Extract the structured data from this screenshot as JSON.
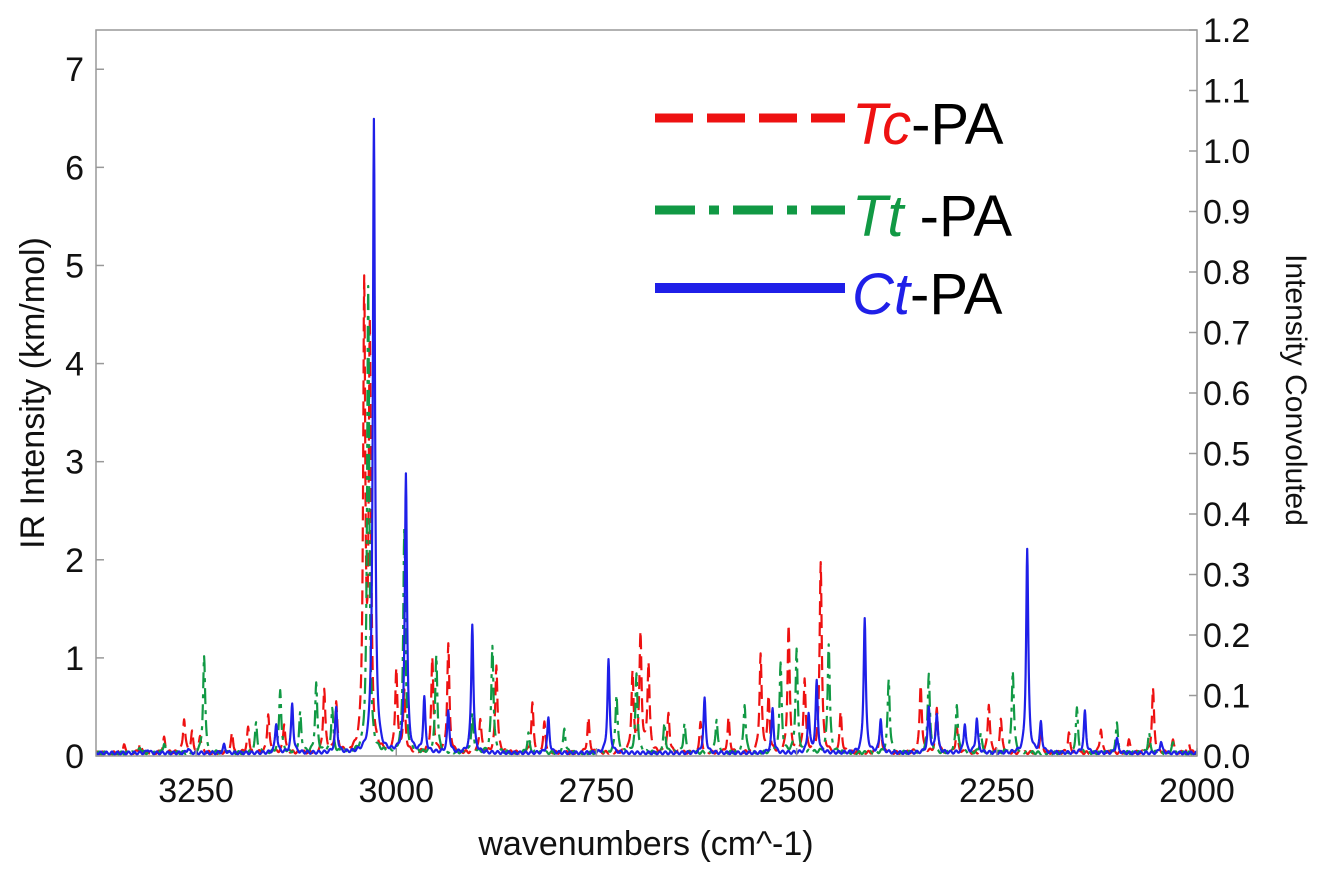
{
  "chart_data": {
    "type": "line",
    "title": "",
    "xlabel": "wavenumbers (cm^-1)",
    "ylabel": "IR Intensity (km/mol)",
    "ylabel_right": "Intensity Convoluted",
    "xlim": [
      3375,
      2000
    ],
    "xaxis_reversed": true,
    "ylim": [
      0,
      7.4
    ],
    "ylim_right": [
      0,
      1.2
    ],
    "x_ticks": [
      3250,
      3000,
      2750,
      2500,
      2250,
      2000
    ],
    "y_ticks": [
      0,
      1,
      2,
      3,
      4,
      5,
      6,
      7
    ],
    "y_right_ticks": [
      "0.0",
      "0.1",
      "0.2",
      "0.3",
      "0.4",
      "0.5",
      "0.6",
      "0.7",
      "0.8",
      "0.9",
      "1.0",
      "1.1",
      "1.2"
    ],
    "grid": false,
    "legend_position": "top-right",
    "legend": [
      {
        "italic": "Tc",
        "rest": "-PA",
        "color": "#ee1111",
        "dash": "dash"
      },
      {
        "italic": "Tt",
        "rest": " -PA",
        "color": "#119944",
        "dash": "dashdot"
      },
      {
        "italic": "Ct",
        "rest": "-PA",
        "color": "#1f1fe8",
        "dash": "solid"
      }
    ],
    "series": [
      {
        "name": "Tc-PA",
        "color": "#ee1111",
        "style": "dash",
        "peaks": [
          [
            3340,
            0.08
          ],
          [
            3320,
            0.1
          ],
          [
            3290,
            0.15
          ],
          [
            3265,
            0.35
          ],
          [
            3255,
            0.2
          ],
          [
            3245,
            0.18
          ],
          [
            3205,
            0.2
          ],
          [
            3185,
            0.25
          ],
          [
            3160,
            0.4
          ],
          [
            3140,
            0.3
          ],
          [
            3090,
            0.65
          ],
          [
            3075,
            0.5
          ],
          [
            3040,
            4.65
          ],
          [
            3033,
            4.2
          ],
          [
            3000,
            0.85
          ],
          [
            2990,
            0.6
          ],
          [
            2955,
            0.95
          ],
          [
            2935,
            1.1
          ],
          [
            2895,
            0.35
          ],
          [
            2875,
            0.9
          ],
          [
            2830,
            0.5
          ],
          [
            2815,
            0.3
          ],
          [
            2760,
            0.35
          ],
          [
            2705,
            0.8
          ],
          [
            2695,
            1.2
          ],
          [
            2685,
            0.9
          ],
          [
            2660,
            0.4
          ],
          [
            2620,
            0.3
          ],
          [
            2585,
            0.35
          ],
          [
            2545,
            1.0
          ],
          [
            2535,
            0.55
          ],
          [
            2510,
            1.3
          ],
          [
            2490,
            0.75
          ],
          [
            2470,
            1.95
          ],
          [
            2445,
            0.4
          ],
          [
            2395,
            0.3
          ],
          [
            2345,
            0.7
          ],
          [
            2325,
            0.45
          ],
          [
            2300,
            0.25
          ],
          [
            2260,
            0.5
          ],
          [
            2245,
            0.35
          ],
          [
            2195,
            0.25
          ],
          [
            2160,
            0.2
          ],
          [
            2120,
            0.25
          ],
          [
            2085,
            0.15
          ],
          [
            2055,
            0.65
          ],
          [
            2030,
            0.15
          ],
          [
            2010,
            0.1
          ]
        ]
      },
      {
        "name": "Tt-PA",
        "color": "#119944",
        "style": "dashdot",
        "peaks": [
          [
            3320,
            0.06
          ],
          [
            3290,
            0.1
          ],
          [
            3240,
            0.98
          ],
          [
            3175,
            0.3
          ],
          [
            3145,
            0.65
          ],
          [
            3120,
            0.4
          ],
          [
            3100,
            0.7
          ],
          [
            3080,
            0.45
          ],
          [
            3035,
            4.75
          ],
          [
            2990,
            2.3
          ],
          [
            2950,
            1.0
          ],
          [
            2905,
            0.4
          ],
          [
            2880,
            1.1
          ],
          [
            2835,
            0.2
          ],
          [
            2790,
            0.25
          ],
          [
            2725,
            0.6
          ],
          [
            2700,
            0.8
          ],
          [
            2665,
            0.3
          ],
          [
            2640,
            0.3
          ],
          [
            2600,
            0.35
          ],
          [
            2565,
            0.5
          ],
          [
            2520,
            0.9
          ],
          [
            2500,
            1.05
          ],
          [
            2460,
            1.12
          ],
          [
            2385,
            0.75
          ],
          [
            2335,
            0.82
          ],
          [
            2300,
            0.5
          ],
          [
            2270,
            0.2
          ],
          [
            2230,
            0.85
          ],
          [
            2150,
            0.45
          ],
          [
            2100,
            0.3
          ],
          [
            2060,
            0.2
          ],
          [
            2030,
            0.1
          ]
        ]
      },
      {
        "name": "Ct-PA",
        "color": "#1f1fe8",
        "style": "solid",
        "peaks": [
          [
            3310,
            0.04
          ],
          [
            3260,
            0.05
          ],
          [
            3215,
            0.08
          ],
          [
            3150,
            0.3
          ],
          [
            3130,
            0.5
          ],
          [
            3075,
            0.45
          ],
          [
            3028,
            6.45
          ],
          [
            2988,
            2.85
          ],
          [
            2965,
            0.55
          ],
          [
            2935,
            0.42
          ],
          [
            2905,
            1.32
          ],
          [
            2810,
            0.35
          ],
          [
            2735,
            0.95
          ],
          [
            2615,
            0.55
          ],
          [
            2530,
            0.45
          ],
          [
            2485,
            0.4
          ],
          [
            2475,
            0.72
          ],
          [
            2415,
            1.38
          ],
          [
            2395,
            0.35
          ],
          [
            2335,
            0.45
          ],
          [
            2325,
            0.4
          ],
          [
            2290,
            0.3
          ],
          [
            2275,
            0.35
          ],
          [
            2212,
            2.08
          ],
          [
            2195,
            0.3
          ],
          [
            2140,
            0.42
          ],
          [
            2100,
            0.15
          ],
          [
            2045,
            0.12
          ]
        ]
      }
    ]
  }
}
